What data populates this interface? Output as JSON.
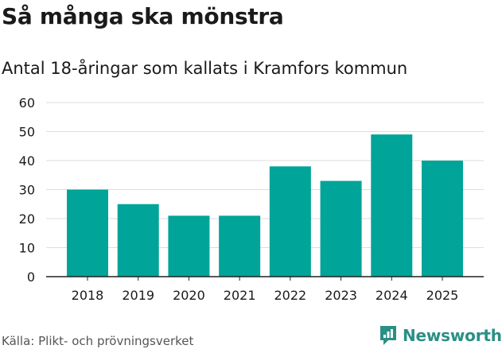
{
  "title": "Så många ska mönstra",
  "subtitle": "Antal 18-åringar som kallats i Kramfors kommun",
  "source": "Källa: Plikt- och prövningsverket",
  "brand": {
    "name": "Newsworthy",
    "icon": "newsworthy-logo-icon"
  },
  "colors": {
    "bar": "#00a499",
    "grid": "#dddddd",
    "axis": "#222222",
    "brand": "#2a8f86"
  },
  "chart_data": {
    "type": "bar",
    "title": "Så många ska mönstra",
    "subtitle": "Antal 18-åringar som kallats i Kramfors kommun",
    "categories": [
      "2018",
      "2019",
      "2020",
      "2021",
      "2022",
      "2023",
      "2024",
      "2025"
    ],
    "values": [
      30,
      25,
      21,
      21,
      38,
      33,
      49,
      40
    ],
    "xlabel": "",
    "ylabel": "",
    "ylim": [
      0,
      60
    ],
    "yticks": [
      "0",
      "10",
      "20",
      "30",
      "40",
      "50",
      "60"
    ],
    "grid": true,
    "legend": "none"
  }
}
